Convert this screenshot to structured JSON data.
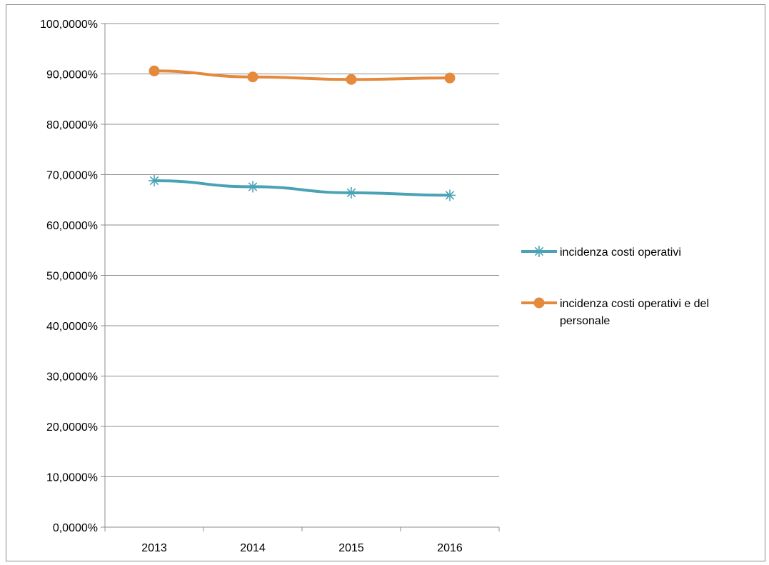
{
  "chart_data": {
    "type": "line",
    "title": "",
    "xlabel": "",
    "ylabel": "",
    "categories": [
      "2013",
      "2014",
      "2015",
      "2016"
    ],
    "ylim": [
      0,
      100
    ],
    "ytick_step": 10,
    "ytick_labels": [
      "0,0000%",
      "10,0000%",
      "20,0000%",
      "30,0000%",
      "40,0000%",
      "50,0000%",
      "60,0000%",
      "70,0000%",
      "80,0000%",
      "90,0000%",
      "100,0000%"
    ],
    "grid": true,
    "legend_position": "right",
    "series": [
      {
        "name": "incidenza costi operativi",
        "values": [
          68.8,
          67.6,
          66.4,
          65.9
        ],
        "color": "#4aa3b5",
        "marker": "asterisk"
      },
      {
        "name": "incidenza costi operativi e del personale",
        "name_lines": [
          "incidenza costi operativi e del",
          "personale"
        ],
        "values": [
          90.6,
          89.4,
          88.9,
          89.2
        ],
        "color": "#e58a3c",
        "marker": "circle"
      }
    ]
  }
}
